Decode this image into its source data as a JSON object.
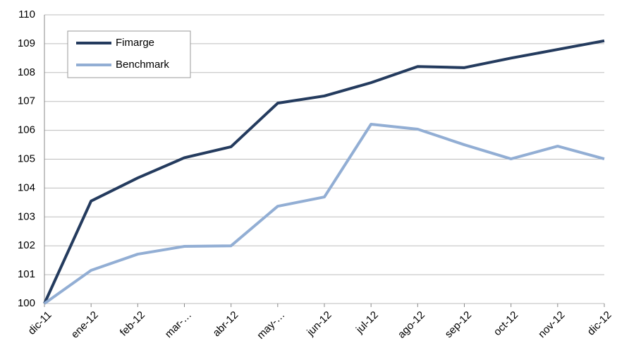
{
  "chart_data": {
    "type": "line",
    "categories": [
      "dic-11",
      "ene-12",
      "feb-12",
      "mar-…",
      "abr-12",
      "may-…",
      "jun-12",
      "jul-12",
      "ago-12",
      "sep-12",
      "oct-12",
      "nov-12",
      "dic-12"
    ],
    "series": [
      {
        "name": "Fimarge",
        "color": "#243b5e",
        "values": [
          100,
          103.55,
          104.35,
          105.05,
          105.43,
          106.94,
          107.19,
          107.65,
          108.21,
          108.17,
          108.5,
          108.8,
          109.1
        ]
      },
      {
        "name": "Benchmark",
        "color": "#92aed4",
        "values": [
          100,
          101.15,
          101.71,
          101.98,
          102.0,
          103.37,
          103.69,
          106.21,
          106.04,
          105.5,
          105.01,
          105.45,
          105.01
        ]
      }
    ],
    "ylim": [
      100,
      110
    ],
    "yticks": [
      100,
      101,
      102,
      103,
      104,
      105,
      106,
      107,
      108,
      109,
      110
    ],
    "grid": true,
    "legend": "upper-left"
  }
}
